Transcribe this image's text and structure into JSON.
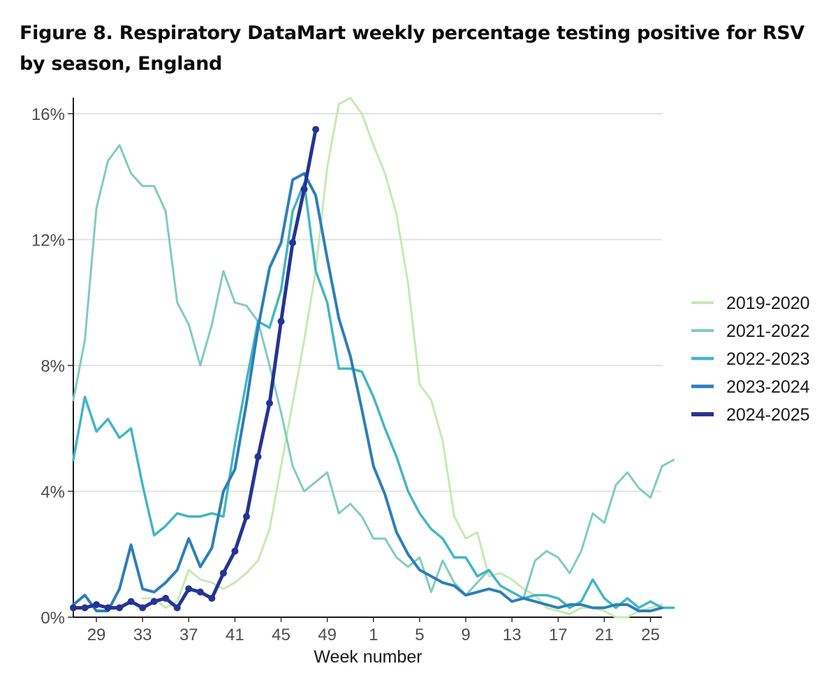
{
  "title": "Figure 8. Respiratory DataMart weekly percentage testing positive for RSV by season, England",
  "chart_data": {
    "type": "line",
    "title": "Figure 8. Respiratory DataMart weekly percentage testing positive for RSV by season, England",
    "xlabel": "Week number",
    "ylabel": "",
    "ylim": [
      0,
      16.6
    ],
    "y_ticks": [
      0,
      4,
      8,
      12,
      16
    ],
    "y_tick_labels": [
      "0%",
      "4%",
      "8%",
      "12%",
      "16%"
    ],
    "x_ticks": [
      29,
      33,
      37,
      41,
      45,
      49,
      1,
      5,
      9,
      13,
      17,
      21,
      25
    ],
    "week_range": "week 27 to week 26 (season order)",
    "grid": "horizontal",
    "legend_position": "right",
    "series": [
      {
        "name": "2019-2020",
        "color": "#c7e9b4",
        "width": 3,
        "markers": false,
        "values": [
          null,
          null,
          null,
          null,
          null,
          null,
          0.6,
          0.6,
          0.3,
          0.5,
          1.5,
          1.2,
          1.1,
          0.9,
          1.1,
          1.4,
          1.8,
          2.8,
          4.8,
          6.8,
          8.8,
          11.0,
          14.3,
          16.3,
          16.5,
          16.0,
          15.0,
          14.1,
          12.8,
          10.6,
          7.4,
          6.9,
          5.6,
          3.2,
          2.5,
          2.7,
          1.3,
          1.4,
          1.2,
          0.9,
          0.7,
          0.3,
          0.2,
          0.1,
          0.3,
          0.3,
          0.2,
          0.0,
          0.0,
          0.2,
          0.3,
          0.4
        ]
      },
      {
        "name": "2021-2022",
        "color": "#7fcdbb",
        "width": 3,
        "markers": false,
        "values": [
          6.9,
          8.8,
          13.0,
          14.5,
          15.0,
          14.1,
          13.7,
          13.7,
          12.9,
          10.0,
          9.3,
          8.0,
          9.3,
          11.0,
          10.0,
          9.9,
          9.4,
          8.0,
          6.5,
          4.8,
          4.0,
          4.3,
          4.6,
          3.3,
          3.6,
          3.2,
          2.5,
          2.5,
          1.9,
          1.6,
          1.9,
          0.8,
          1.8,
          1.1,
          0.7,
          1.1,
          1.5,
          1.0,
          0.8,
          0.6,
          1.8,
          2.1,
          1.9,
          1.4,
          2.1,
          3.3,
          3.0,
          4.2,
          4.6,
          4.1,
          3.8,
          4.8,
          5.0
        ]
      },
      {
        "name": "2022-2023",
        "color": "#41b6c4",
        "width": 3.5,
        "markers": false,
        "values": [
          5.0,
          7.0,
          5.9,
          6.3,
          5.7,
          6.0,
          4.2,
          2.6,
          2.9,
          3.3,
          3.2,
          3.2,
          3.3,
          3.2,
          5.5,
          7.5,
          9.4,
          9.2,
          10.4,
          12.9,
          13.8,
          11.0,
          10.0,
          7.9,
          7.9,
          7.8,
          7.0,
          6.0,
          5.1,
          4.0,
          3.3,
          2.8,
          2.5,
          1.9,
          1.9,
          1.3,
          1.5,
          1.0,
          0.8,
          0.6,
          0.7,
          0.7,
          0.6,
          0.3,
          0.5,
          1.2,
          0.6,
          0.3,
          0.6,
          0.3,
          0.5,
          0.3,
          0.3
        ]
      },
      {
        "name": "2023-2024",
        "color": "#2c7fb8",
        "width": 4,
        "markers": false,
        "values": [
          0.4,
          0.7,
          0.2,
          0.2,
          0.9,
          2.3,
          0.9,
          0.8,
          1.1,
          1.5,
          2.5,
          1.6,
          2.2,
          4.0,
          4.7,
          6.8,
          9.2,
          11.1,
          11.9,
          13.9,
          14.1,
          13.4,
          11.4,
          9.5,
          8.3,
          6.6,
          4.8,
          3.9,
          2.7,
          2.0,
          1.5,
          1.3,
          1.1,
          1.0,
          0.7,
          0.8,
          0.9,
          0.8,
          0.5,
          0.6,
          0.5,
          0.4,
          0.3,
          0.4,
          0.4,
          0.3,
          0.3,
          0.4,
          0.4,
          0.2,
          0.2,
          0.3
        ]
      },
      {
        "name": "2024-2025",
        "color": "#253494",
        "width": 5,
        "markers": true,
        "values": [
          0.3,
          0.3,
          0.4,
          0.3,
          0.3,
          0.5,
          0.3,
          0.5,
          0.6,
          0.3,
          0.9,
          0.8,
          0.6,
          1.4,
          2.1,
          3.2,
          5.1,
          6.8,
          9.4,
          11.9,
          13.6,
          15.5
        ]
      }
    ]
  }
}
